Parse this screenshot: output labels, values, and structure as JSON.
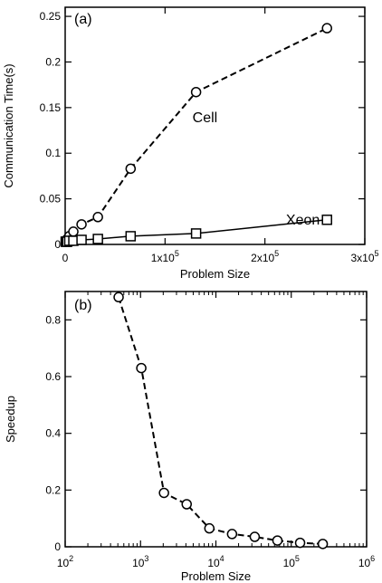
{
  "chart_data": [
    {
      "panel": "(a)",
      "type": "line",
      "xlabel": "Problem Size",
      "ylabel": "Communication Time(s)",
      "xscale": "linear",
      "xlim": [
        0,
        300000
      ],
      "ylim": [
        0,
        0.26
      ],
      "x_ticks": [
        {
          "value": 0,
          "label": "0",
          "exp": ""
        },
        {
          "value": 100000,
          "label": "1x10",
          "exp": "5"
        },
        {
          "value": 200000,
          "label": "2x10",
          "exp": "5"
        },
        {
          "value": 300000,
          "label": "3x10",
          "exp": "5"
        }
      ],
      "y_ticks": [
        {
          "value": 0,
          "label": "0"
        },
        {
          "value": 0.05,
          "label": "0.05"
        },
        {
          "value": 0.1,
          "label": "0.1"
        },
        {
          "value": 0.15,
          "label": "0.15"
        },
        {
          "value": 0.2,
          "label": "0.2"
        },
        {
          "value": 0.25,
          "label": "0.25"
        }
      ],
      "series": [
        {
          "name": "Cell",
          "marker": "circle",
          "dash": true,
          "label_at": [
            140000,
            0.134
          ],
          "x": [
            512,
            1024,
            2048,
            4096,
            8192,
            16384,
            32768,
            65536,
            131072,
            262144
          ],
          "y": [
            0.003,
            0.004,
            0.006,
            0.009,
            0.014,
            0.022,
            0.03,
            0.083,
            0.167,
            0.237
          ]
        },
        {
          "name": "Xeon",
          "marker": "square",
          "dash": false,
          "label_at": [
            238000,
            0.022
          ],
          "x": [
            512,
            1024,
            2048,
            4096,
            8192,
            16384,
            32768,
            65536,
            131072,
            262144
          ],
          "y": [
            0.003,
            0.003,
            0.003,
            0.004,
            0.004,
            0.005,
            0.006,
            0.009,
            0.012,
            0.027
          ]
        }
      ]
    },
    {
      "panel": "(b)",
      "type": "line",
      "xlabel": "Problem Size",
      "ylabel": "Speedup",
      "xscale": "log",
      "xlim": [
        100,
        1000000
      ],
      "ylim": [
        0,
        0.9
      ],
      "x_ticks": [
        {
          "value": 100,
          "label": "10",
          "exp": "2"
        },
        {
          "value": 1000,
          "label": "10",
          "exp": "3"
        },
        {
          "value": 10000,
          "label": "10",
          "exp": "4"
        },
        {
          "value": 100000,
          "label": "10",
          "exp": "5"
        },
        {
          "value": 1000000,
          "label": "10",
          "exp": "6"
        }
      ],
      "y_ticks": [
        {
          "value": 0,
          "label": "0"
        },
        {
          "value": 0.2,
          "label": "0.2"
        },
        {
          "value": 0.4,
          "label": "0.4"
        },
        {
          "value": 0.6,
          "label": "0.6"
        },
        {
          "value": 0.8,
          "label": "0.8"
        }
      ],
      "series": [
        {
          "marker": "circle",
          "dash": true,
          "x": [
            512,
            1024,
            2048,
            4096,
            8192,
            16384,
            32768,
            65536,
            131072,
            262144
          ],
          "y": [
            0.88,
            0.63,
            0.19,
            0.15,
            0.065,
            0.045,
            0.035,
            0.022,
            0.014,
            0.01
          ]
        }
      ]
    }
  ]
}
